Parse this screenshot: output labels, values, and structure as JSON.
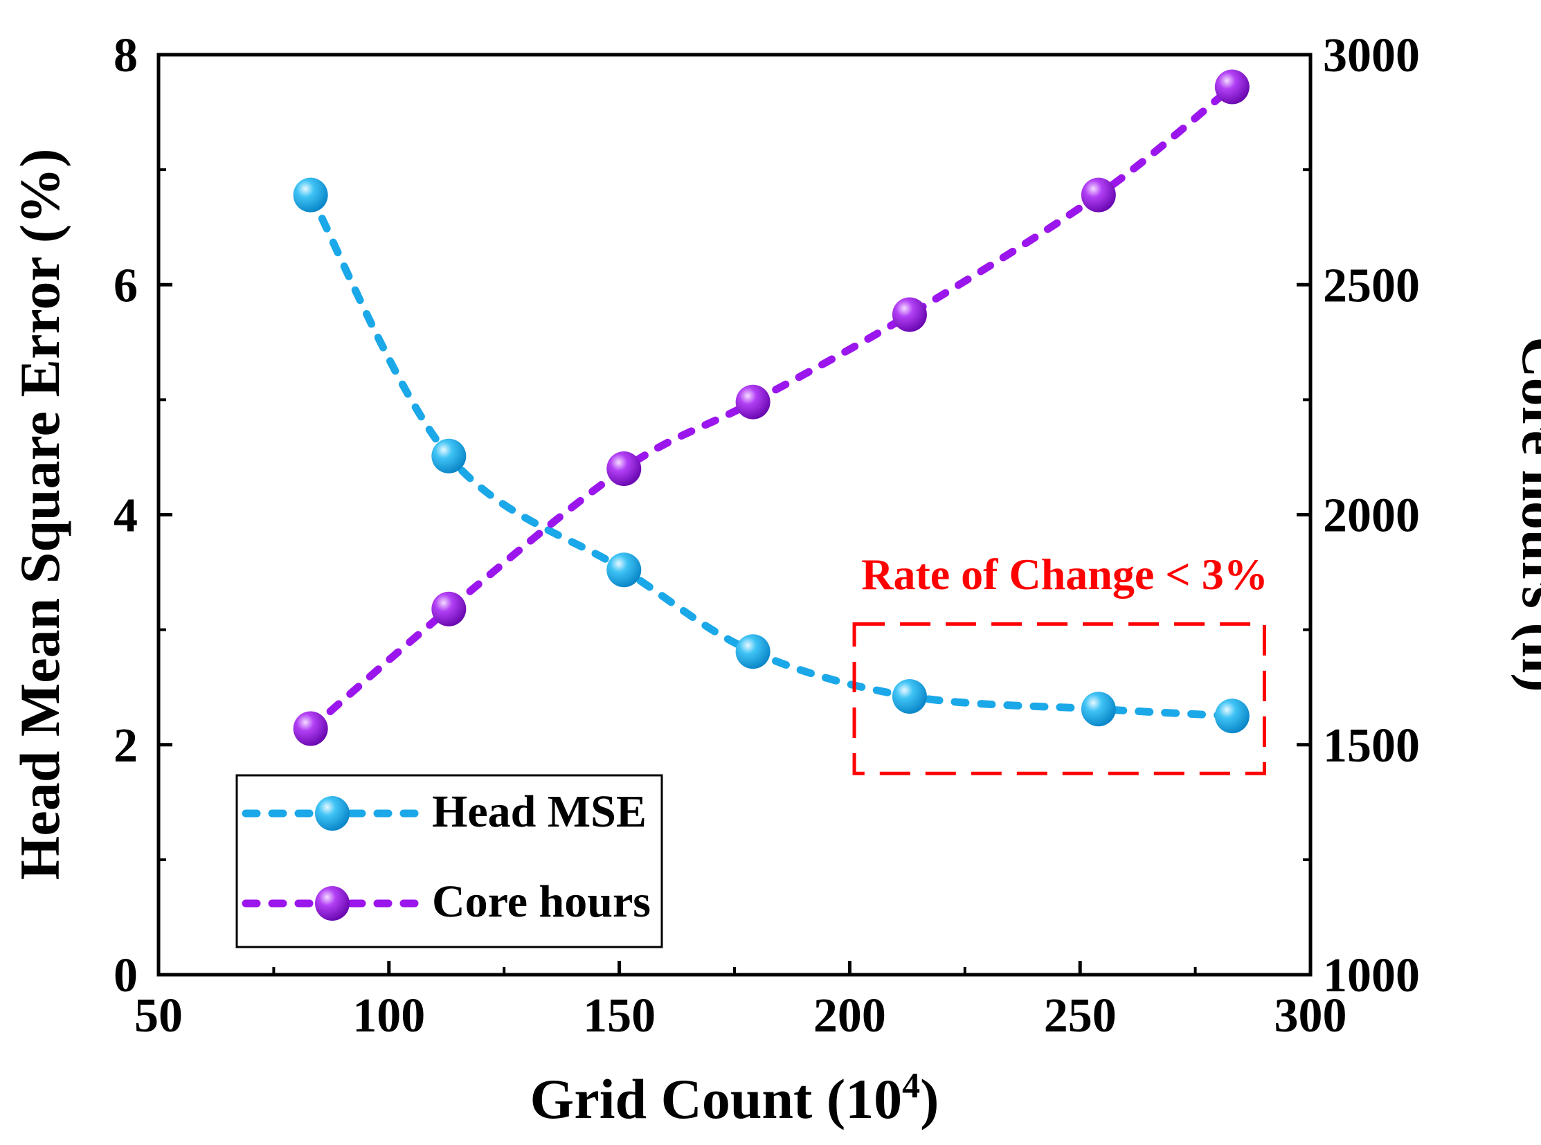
{
  "chart_data": {
    "type": "line",
    "title": "",
    "xlabel": "Grid Count (10",
    "xlabel_sup": "4",
    "xlabel_close": ")",
    "ylabel_left": "Head Mean Square Error (%)",
    "ylabel_right": "Core hours (h)",
    "xlim": [
      50,
      300
    ],
    "ylim_left": [
      0,
      8
    ],
    "ylim_right": [
      1000,
      3000
    ],
    "x_ticks": [
      "50",
      "100",
      "150",
      "200",
      "250",
      "300"
    ],
    "y_left_ticks": [
      "0",
      "2",
      "4",
      "6",
      "8"
    ],
    "y_right_ticks": [
      "1000",
      "1500",
      "2000",
      "2500",
      "3000"
    ],
    "series": [
      {
        "name": "Head MSE",
        "axis": "left",
        "color": "#1BA8E8",
        "x": [
          83,
          113,
          151,
          179,
          213,
          254,
          283
        ],
        "values": [
          6.78,
          4.51,
          3.52,
          2.81,
          2.42,
          2.31,
          2.25
        ]
      },
      {
        "name": "Core hours",
        "axis": "right",
        "color": "#9B16EC",
        "x": [
          83,
          113,
          151,
          179,
          213,
          254,
          283
        ],
        "values": [
          1535,
          1795,
          2100,
          2245,
          2435,
          2695,
          2930
        ]
      }
    ],
    "legend_position": "bottom-left",
    "annotation": {
      "text": "Rate of Change < 3%",
      "color": "#FF0000",
      "box_x": [
        201,
        290
      ],
      "box_y_left": [
        1.75,
        3.05
      ]
    }
  }
}
